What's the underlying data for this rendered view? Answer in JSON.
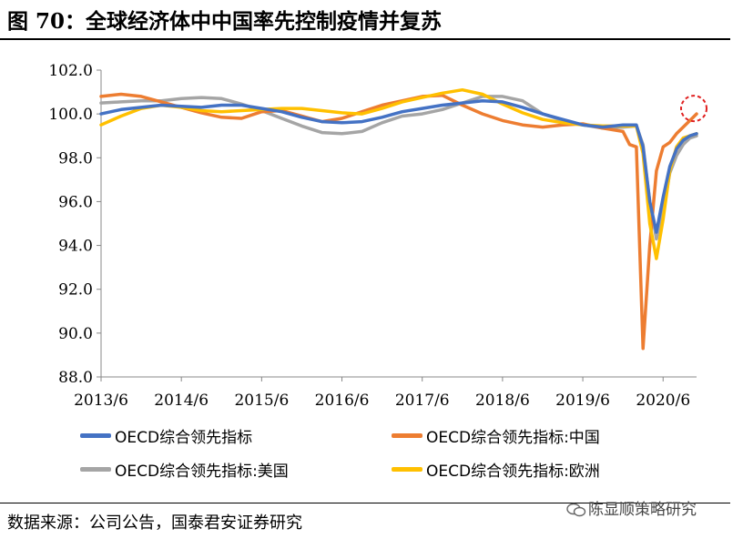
{
  "title": "图 70：全球经济体中中国率先控制疫情并复苏",
  "source": "数据来源：公司公告，国泰君安证券研究",
  "watermark": "陈显顺策略研究",
  "chart_data": {
    "type": "line",
    "title": "",
    "xlabel": "",
    "ylabel": "",
    "ylim": [
      88.0,
      102.0
    ],
    "yticks": [
      "88.0",
      "90.0",
      "92.0",
      "94.0",
      "96.0",
      "98.0",
      "100.0",
      "102.0"
    ],
    "xlim": [
      "2013-06",
      "2020-11"
    ],
    "xticks": [
      "2013/6",
      "2014/6",
      "2015/6",
      "2016/6",
      "2017/6",
      "2018/6",
      "2019/6",
      "2020/6"
    ],
    "grid": false,
    "legend_placement": "bottom",
    "series": [
      {
        "name": "OECD综合领先指标",
        "color": "#4472C4",
        "points": [
          [
            "2013-06",
            100.0
          ],
          [
            "2013-09",
            100.2
          ],
          [
            "2013-12",
            100.3
          ],
          [
            "2014-03",
            100.4
          ],
          [
            "2014-06",
            100.35
          ],
          [
            "2014-09",
            100.3
          ],
          [
            "2014-12",
            100.4
          ],
          [
            "2015-03",
            100.4
          ],
          [
            "2015-06",
            100.25
          ],
          [
            "2015-09",
            100.1
          ],
          [
            "2015-12",
            99.85
          ],
          [
            "2016-03",
            99.65
          ],
          [
            "2016-06",
            99.6
          ],
          [
            "2016-09",
            99.65
          ],
          [
            "2016-12",
            99.85
          ],
          [
            "2017-03",
            100.1
          ],
          [
            "2017-06",
            100.25
          ],
          [
            "2017-09",
            100.4
          ],
          [
            "2017-12",
            100.5
          ],
          [
            "2018-03",
            100.6
          ],
          [
            "2018-06",
            100.55
          ],
          [
            "2018-09",
            100.3
          ],
          [
            "2018-12",
            100.0
          ],
          [
            "2019-03",
            99.75
          ],
          [
            "2019-06",
            99.5
          ],
          [
            "2019-09",
            99.4
          ],
          [
            "2019-12",
            99.5
          ],
          [
            "2020-02",
            99.5
          ],
          [
            "2020-03",
            98.5
          ],
          [
            "2020-04",
            96.0
          ],
          [
            "2020-05",
            94.6
          ],
          [
            "2020-06",
            96.2
          ],
          [
            "2020-07",
            97.6
          ],
          [
            "2020-08",
            98.4
          ],
          [
            "2020-09",
            98.8
          ],
          [
            "2020-10",
            99.0
          ],
          [
            "2020-11",
            99.1
          ]
        ]
      },
      {
        "name": "OECD综合领先指标:中国",
        "color": "#ED7D31",
        "points": [
          [
            "2013-06",
            100.8
          ],
          [
            "2013-09",
            100.9
          ],
          [
            "2013-12",
            100.8
          ],
          [
            "2014-03",
            100.55
          ],
          [
            "2014-06",
            100.3
          ],
          [
            "2014-09",
            100.05
          ],
          [
            "2014-12",
            99.85
          ],
          [
            "2015-03",
            99.8
          ],
          [
            "2015-06",
            100.1
          ],
          [
            "2015-09",
            100.15
          ],
          [
            "2015-12",
            99.9
          ],
          [
            "2016-03",
            99.65
          ],
          [
            "2016-06",
            99.8
          ],
          [
            "2016-09",
            100.1
          ],
          [
            "2016-12",
            100.4
          ],
          [
            "2017-03",
            100.6
          ],
          [
            "2017-06",
            100.8
          ],
          [
            "2017-09",
            100.85
          ],
          [
            "2017-12",
            100.4
          ],
          [
            "2018-03",
            100.0
          ],
          [
            "2018-06",
            99.7
          ],
          [
            "2018-09",
            99.5
          ],
          [
            "2018-12",
            99.4
          ],
          [
            "2019-03",
            99.5
          ],
          [
            "2019-06",
            99.55
          ],
          [
            "2019-09",
            99.35
          ],
          [
            "2019-12",
            99.2
          ],
          [
            "2020-01",
            98.6
          ],
          [
            "2020-02",
            98.5
          ],
          [
            "2020-03",
            89.3
          ],
          [
            "2020-04",
            94.0
          ],
          [
            "2020-05",
            97.4
          ],
          [
            "2020-06",
            98.5
          ],
          [
            "2020-07",
            98.7
          ],
          [
            "2020-08",
            99.1
          ],
          [
            "2020-09",
            99.4
          ],
          [
            "2020-10",
            99.7
          ],
          [
            "2020-11",
            100.0
          ]
        ]
      },
      {
        "name": "OECD综合领先指标:美国",
        "color": "#A5A5A5",
        "points": [
          [
            "2013-06",
            100.5
          ],
          [
            "2013-09",
            100.55
          ],
          [
            "2013-12",
            100.6
          ],
          [
            "2014-03",
            100.6
          ],
          [
            "2014-06",
            100.7
          ],
          [
            "2014-09",
            100.75
          ],
          [
            "2014-12",
            100.7
          ],
          [
            "2015-03",
            100.45
          ],
          [
            "2015-06",
            100.15
          ],
          [
            "2015-09",
            99.8
          ],
          [
            "2015-12",
            99.45
          ],
          [
            "2016-03",
            99.15
          ],
          [
            "2016-06",
            99.1
          ],
          [
            "2016-09",
            99.2
          ],
          [
            "2016-12",
            99.6
          ],
          [
            "2017-03",
            99.9
          ],
          [
            "2017-06",
            100.0
          ],
          [
            "2017-09",
            100.2
          ],
          [
            "2017-12",
            100.5
          ],
          [
            "2018-03",
            100.8
          ],
          [
            "2018-06",
            100.8
          ],
          [
            "2018-09",
            100.6
          ],
          [
            "2018-12",
            100.0
          ],
          [
            "2019-03",
            99.7
          ],
          [
            "2019-06",
            99.5
          ],
          [
            "2019-09",
            99.35
          ],
          [
            "2019-12",
            99.4
          ],
          [
            "2020-02",
            99.45
          ],
          [
            "2020-03",
            98.6
          ],
          [
            "2020-04",
            96.0
          ],
          [
            "2020-05",
            94.3
          ],
          [
            "2020-06",
            95.6
          ],
          [
            "2020-07",
            97.3
          ],
          [
            "2020-08",
            98.1
          ],
          [
            "2020-09",
            98.6
          ],
          [
            "2020-10",
            98.9
          ],
          [
            "2020-11",
            99.0
          ]
        ]
      },
      {
        "name": "OECD综合领先指标:欧洲",
        "color": "#FFC000",
        "points": [
          [
            "2013-06",
            99.5
          ],
          [
            "2013-09",
            99.9
          ],
          [
            "2013-12",
            100.25
          ],
          [
            "2014-03",
            100.4
          ],
          [
            "2014-06",
            100.3
          ],
          [
            "2014-09",
            100.15
          ],
          [
            "2014-12",
            100.1
          ],
          [
            "2015-03",
            100.15
          ],
          [
            "2015-06",
            100.2
          ],
          [
            "2015-09",
            100.25
          ],
          [
            "2015-12",
            100.25
          ],
          [
            "2016-03",
            100.15
          ],
          [
            "2016-06",
            100.05
          ],
          [
            "2016-09",
            100.0
          ],
          [
            "2016-12",
            100.25
          ],
          [
            "2017-03",
            100.55
          ],
          [
            "2017-06",
            100.75
          ],
          [
            "2017-09",
            100.95
          ],
          [
            "2017-12",
            101.1
          ],
          [
            "2018-03",
            100.9
          ],
          [
            "2018-06",
            100.45
          ],
          [
            "2018-09",
            100.05
          ],
          [
            "2018-12",
            99.75
          ],
          [
            "2019-03",
            99.6
          ],
          [
            "2019-06",
            99.5
          ],
          [
            "2019-09",
            99.45
          ],
          [
            "2019-12",
            99.45
          ],
          [
            "2020-02",
            99.45
          ],
          [
            "2020-03",
            98.2
          ],
          [
            "2020-04",
            95.0
          ],
          [
            "2020-05",
            93.4
          ],
          [
            "2020-06",
            95.2
          ],
          [
            "2020-07",
            97.4
          ],
          [
            "2020-08",
            98.5
          ],
          [
            "2020-09",
            98.9
          ],
          [
            "2020-10",
            99.0
          ],
          [
            "2020-11",
            99.1
          ]
        ]
      }
    ],
    "annotations": [
      {
        "type": "dashed-circle",
        "color": "#E02020",
        "at": [
          "2020-11",
          100.0
        ]
      }
    ]
  }
}
